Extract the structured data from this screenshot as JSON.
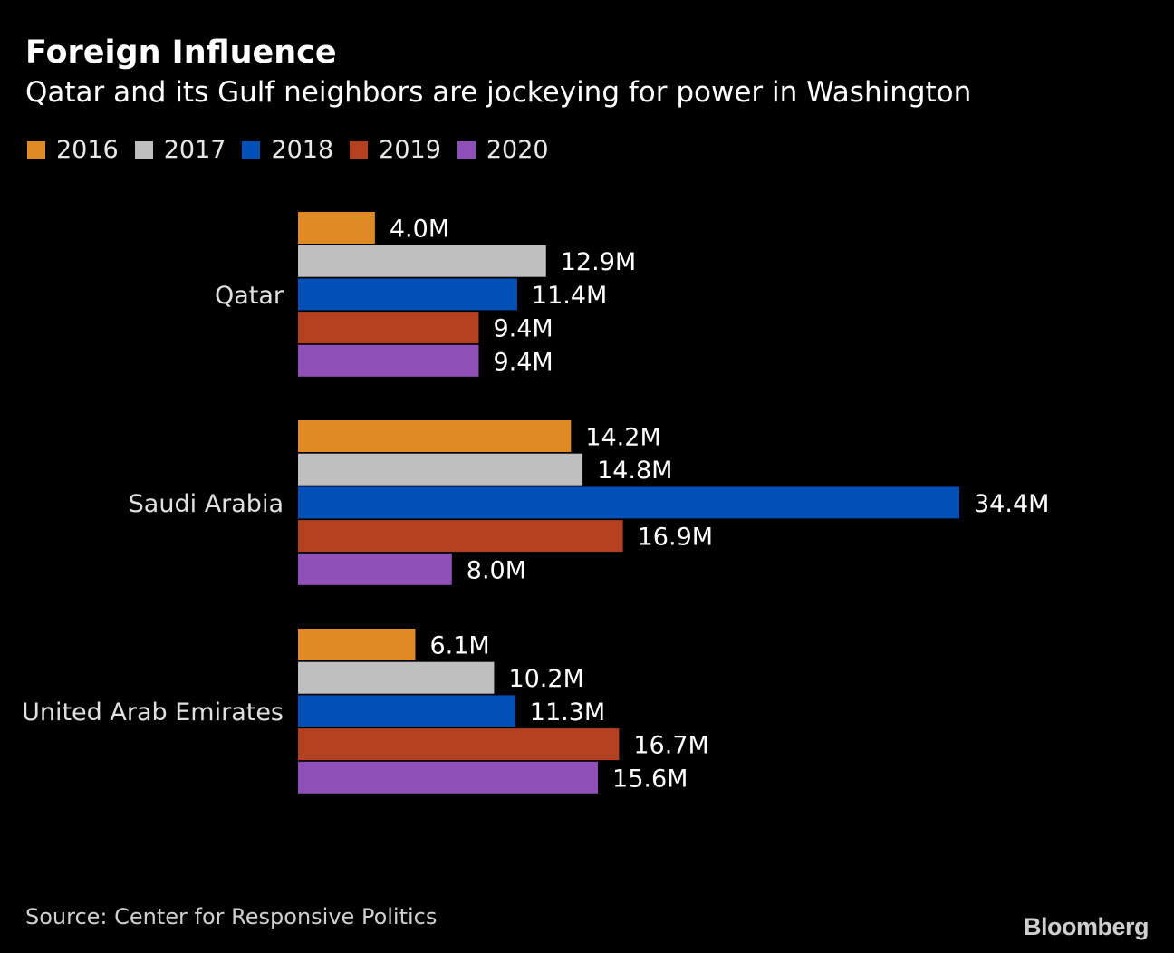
{
  "header": {
    "title": "Foreign Influence",
    "subtitle": "Qatar and its Gulf neighbors are jockeying for power in Washington"
  },
  "legend": [
    {
      "label": "2016",
      "color": "#df8a25"
    },
    {
      "label": "2017",
      "color": "#bfbfbf"
    },
    {
      "label": "2018",
      "color": "#0050b8"
    },
    {
      "label": "2019",
      "color": "#b3401f"
    },
    {
      "label": "2020",
      "color": "#9150b8"
    }
  ],
  "chart_data": {
    "type": "bar",
    "orientation": "horizontal",
    "title": "Foreign Influence",
    "subtitle": "Qatar and its Gulf neighbors are jockeying for power in Washington",
    "categories": [
      "Qatar",
      "Saudi Arabia",
      "United Arab Emirates"
    ],
    "series": [
      {
        "name": "2016",
        "color": "#df8a25",
        "values": [
          4.0,
          14.2,
          6.1
        ],
        "labels": [
          "4.0M",
          "14.2M",
          "6.1M"
        ]
      },
      {
        "name": "2017",
        "color": "#bfbfbf",
        "values": [
          12.9,
          14.8,
          10.2
        ],
        "labels": [
          "12.9M",
          "14.8M",
          "10.2M"
        ]
      },
      {
        "name": "2018",
        "color": "#0050b8",
        "values": [
          11.4,
          34.4,
          11.3
        ],
        "labels": [
          "11.4M",
          "34.4M",
          "11.3M"
        ]
      },
      {
        "name": "2019",
        "color": "#b3401f",
        "values": [
          9.4,
          16.9,
          16.7
        ],
        "labels": [
          "9.4M",
          "16.9M",
          "16.7M"
        ]
      },
      {
        "name": "2020",
        "color": "#9150b8",
        "values": [
          9.4,
          8.0,
          15.6
        ],
        "labels": [
          "9.4M",
          "8.0M",
          "15.6M"
        ]
      }
    ],
    "unit": "M",
    "xlim": [
      0,
      34.4
    ],
    "grid": false,
    "legend_position": "top-left"
  },
  "footer": {
    "source": "Source: Center for Responsive Politics",
    "logo": "Bloomberg"
  }
}
